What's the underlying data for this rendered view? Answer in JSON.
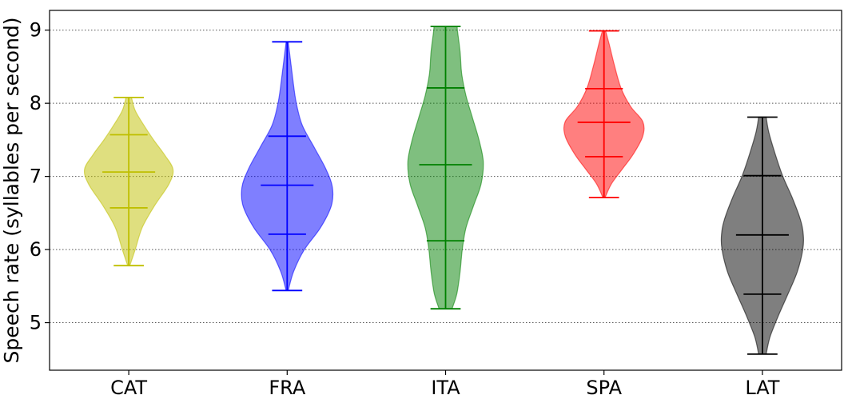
{
  "chart_data": {
    "type": "violin",
    "title": "",
    "xlabel": "",
    "ylabel": "Speech rate (syllables per second)",
    "categories": [
      "CAT",
      "FRA",
      "ITA",
      "SPA",
      "LAT"
    ],
    "ylim": [
      4.35,
      9.27
    ],
    "yticks": [
      5,
      6,
      7,
      8,
      9
    ],
    "grid": "horizontal dotted",
    "series": [
      {
        "category": "CAT",
        "color": "#bfbf00",
        "min": 5.78,
        "max": 8.08,
        "q1": 6.57,
        "median": 7.06,
        "q3": 7.57,
        "profile": [
          [
            5.78,
            0.02
          ],
          [
            6.0,
            0.12
          ],
          [
            6.3,
            0.25
          ],
          [
            6.6,
            0.48
          ],
          [
            6.9,
            0.75
          ],
          [
            7.1,
            0.82
          ],
          [
            7.3,
            0.66
          ],
          [
            7.5,
            0.46
          ],
          [
            7.7,
            0.28
          ],
          [
            7.9,
            0.12
          ],
          [
            8.08,
            0.05
          ]
        ]
      },
      {
        "category": "FRA",
        "color": "#0000ff",
        "min": 5.44,
        "max": 8.84,
        "q1": 6.21,
        "median": 6.88,
        "q3": 7.55,
        "profile": [
          [
            5.44,
            0.02
          ],
          [
            5.7,
            0.12
          ],
          [
            6.0,
            0.32
          ],
          [
            6.3,
            0.62
          ],
          [
            6.6,
            0.82
          ],
          [
            6.85,
            0.84
          ],
          [
            7.1,
            0.72
          ],
          [
            7.4,
            0.5
          ],
          [
            7.7,
            0.28
          ],
          [
            8.0,
            0.17
          ],
          [
            8.3,
            0.11
          ],
          [
            8.6,
            0.06
          ],
          [
            8.84,
            0.02
          ]
        ]
      },
      {
        "category": "ITA",
        "color": "#008000",
        "min": 5.19,
        "max": 9.05,
        "q1": 6.12,
        "median": 7.16,
        "q3": 8.21,
        "profile": [
          [
            5.19,
            0.12
          ],
          [
            5.4,
            0.21
          ],
          [
            5.7,
            0.27
          ],
          [
            6.0,
            0.31
          ],
          [
            6.3,
            0.38
          ],
          [
            6.6,
            0.52
          ],
          [
            6.9,
            0.66
          ],
          [
            7.2,
            0.7
          ],
          [
            7.5,
            0.62
          ],
          [
            7.8,
            0.5
          ],
          [
            8.1,
            0.38
          ],
          [
            8.4,
            0.3
          ],
          [
            8.7,
            0.27
          ],
          [
            9.0,
            0.22
          ],
          [
            9.05,
            0.22
          ]
        ]
      },
      {
        "category": "SPA",
        "color": "#ff0000",
        "min": 6.71,
        "max": 8.99,
        "q1": 7.27,
        "median": 7.74,
        "q3": 8.2,
        "profile": [
          [
            6.71,
            0.02
          ],
          [
            6.9,
            0.14
          ],
          [
            7.1,
            0.34
          ],
          [
            7.3,
            0.54
          ],
          [
            7.55,
            0.72
          ],
          [
            7.75,
            0.72
          ],
          [
            7.95,
            0.5
          ],
          [
            8.2,
            0.32
          ],
          [
            8.5,
            0.2
          ],
          [
            8.8,
            0.1
          ],
          [
            8.99,
            0.03
          ]
        ]
      },
      {
        "category": "LAT",
        "color": "#000000",
        "min": 4.57,
        "max": 7.81,
        "q1": 5.39,
        "median": 6.2,
        "q3": 7.01,
        "profile": [
          [
            4.57,
            0.07
          ],
          [
            4.8,
            0.14
          ],
          [
            5.1,
            0.3
          ],
          [
            5.4,
            0.48
          ],
          [
            5.7,
            0.65
          ],
          [
            6.0,
            0.75
          ],
          [
            6.2,
            0.76
          ],
          [
            6.4,
            0.71
          ],
          [
            6.7,
            0.56
          ],
          [
            7.0,
            0.38
          ],
          [
            7.3,
            0.24
          ],
          [
            7.6,
            0.12
          ],
          [
            7.81,
            0.07
          ]
        ]
      }
    ]
  }
}
